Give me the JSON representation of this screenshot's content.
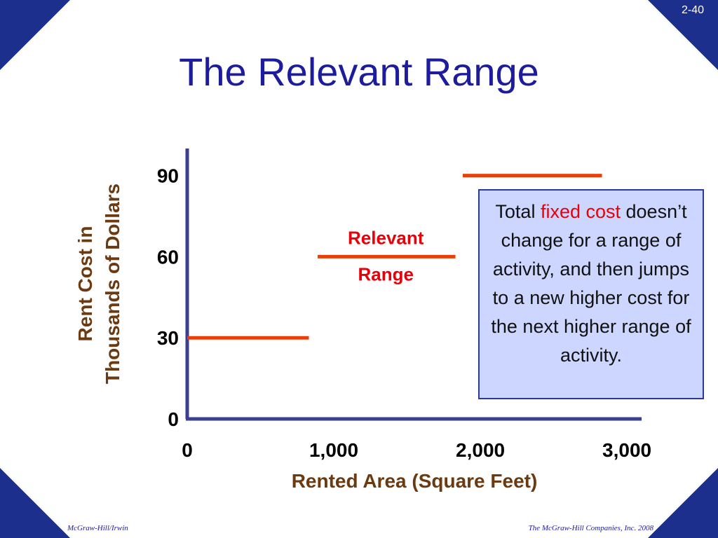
{
  "slide": {
    "number": "2-40",
    "title": "The Relevant Range",
    "footer_left": "McGraw-Hill/Irwin",
    "footer_right": "The McGraw-Hill Companies, Inc. 2008"
  },
  "colors": {
    "corner": "#1c2f8c",
    "title": "#1c1c9c",
    "axis": "#3a3f8f",
    "segment": "#e8400a",
    "axis_label": "#6b3a10",
    "highlight": "#e8000a",
    "note_bg": "#ccd6ff",
    "note_border": "#2a3a9c"
  },
  "chart_data": {
    "type": "line",
    "xlabel": "Rented Area (Square Feet)",
    "ylabel_line1": "Rent Cost in",
    "ylabel_line2": "Thousands of Dollars",
    "x_ticks": [
      {
        "value": 0,
        "label": "0"
      },
      {
        "value": 1000,
        "label": "1,000"
      },
      {
        "value": 2000,
        "label": "2,000"
      },
      {
        "value": 3000,
        "label": "3,000"
      }
    ],
    "y_ticks": [
      {
        "value": 0,
        "label": "0"
      },
      {
        "value": 30,
        "label": "30"
      },
      {
        "value": 60,
        "label": "60"
      },
      {
        "value": 90,
        "label": "90"
      }
    ],
    "xlim": [
      0,
      3100
    ],
    "ylim": [
      0,
      100
    ],
    "segments": [
      {
        "x_start": 0,
        "x_end": 830,
        "y": 30
      },
      {
        "x_start": 890,
        "x_end": 1830,
        "y": 60
      },
      {
        "x_start": 1880,
        "x_end": 2830,
        "y": 90
      }
    ],
    "annotation": {
      "line1": "Relevant",
      "line2": "Range",
      "x": 1355
    }
  },
  "note": {
    "prefix": "Total ",
    "highlight": "fixed cost",
    "rest": " doesn’t change for a range of activity, and then jumps to a new higher cost for the next higher range of activity."
  }
}
